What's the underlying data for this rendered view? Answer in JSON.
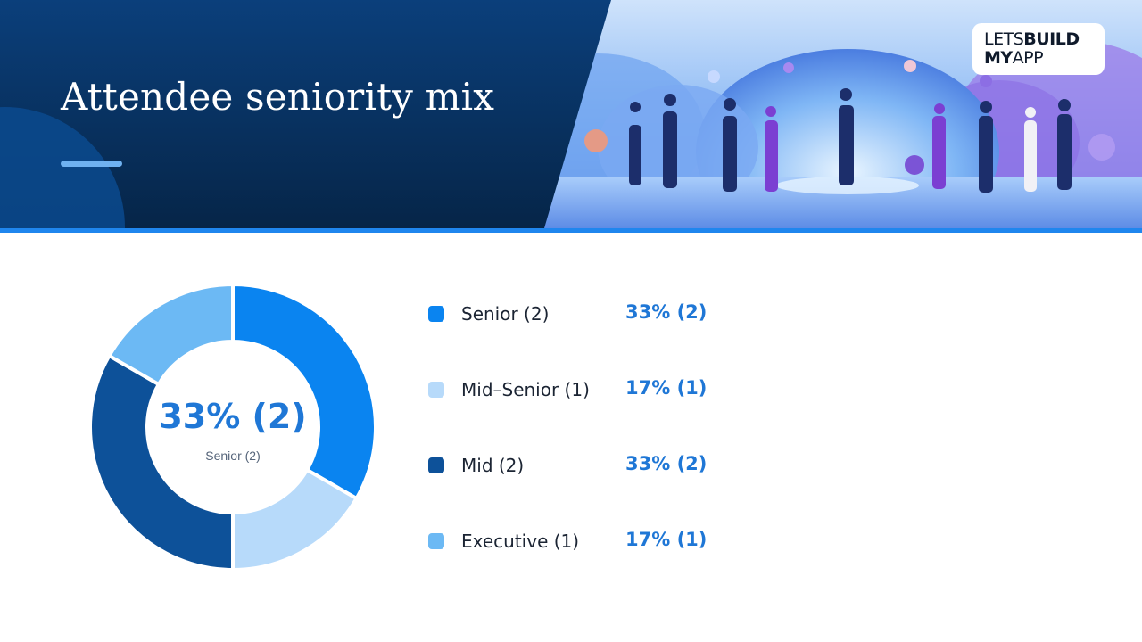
{
  "header": {
    "title": "Attendee seniority mix"
  },
  "logo": {
    "line1_light": "LETS",
    "line1_bold": "BUILD",
    "line2_bold": "MY",
    "line2_light": "APP"
  },
  "colors": {
    "header_bg": "#08315f",
    "accent_rule": "#1f86ee",
    "value_text": "#1f77d6"
  },
  "center": {
    "value": "33% (2)",
    "label": "Senior (2)"
  },
  "legend": [
    {
      "label": "Senior (2)",
      "value": "33% (2)",
      "color": "#0a84f0"
    },
    {
      "label": "Mid–Senior (1)",
      "value": "17% (1)",
      "color": "#b7dafa"
    },
    {
      "label": "Mid (2)",
      "value": "33% (2)",
      "color": "#0d5199"
    },
    {
      "label": "Executive (1)",
      "value": "17% (1)",
      "color": "#6cb9f4"
    }
  ],
  "chart_data": {
    "type": "pie",
    "donut": true,
    "categories": [
      "Senior (2)",
      "Mid–Senior (1)",
      "Mid (2)",
      "Executive (1)"
    ],
    "values": [
      2,
      1,
      2,
      1
    ],
    "percent": [
      33,
      17,
      33,
      17
    ],
    "colors": [
      "#0a84f0",
      "#b7dafa",
      "#0d5199",
      "#6cb9f4"
    ],
    "title": "Attendee seniority mix",
    "legend": "right"
  }
}
